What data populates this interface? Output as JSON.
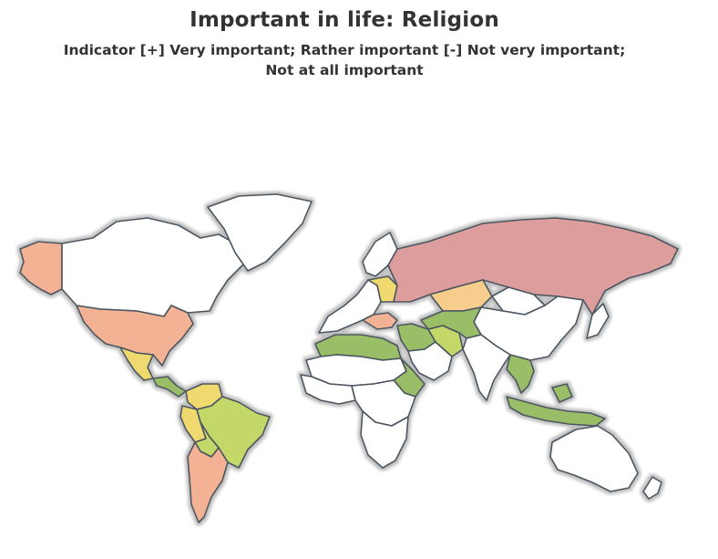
{
  "title": "Important in life: Religion",
  "subtitle_line1": "Indicator [+] Very important; Rather important [-] Not very important;",
  "subtitle_line2": "Not at all important",
  "colors": {
    "no_data": "#ffffff",
    "very_low": "#de9d9d",
    "low": "#f3b294",
    "mid_low": "#f6cd8c",
    "mid": "#f0d96e",
    "mid_high": "#c4d769",
    "high": "#9abd68",
    "outline": "#4a5560",
    "glow": "#bfbfbf"
  },
  "regions": [
    {
      "name": "alaska",
      "color": "low"
    },
    {
      "name": "canada",
      "color": "no_data"
    },
    {
      "name": "greenland",
      "color": "no_data"
    },
    {
      "name": "usa",
      "color": "low"
    },
    {
      "name": "mexico",
      "color": "mid"
    },
    {
      "name": "central-america",
      "color": "high"
    },
    {
      "name": "colombia-venezuela",
      "color": "mid"
    },
    {
      "name": "peru-ecuador",
      "color": "mid"
    },
    {
      "name": "brazil",
      "color": "mid_high"
    },
    {
      "name": "bolivia",
      "color": "mid_high"
    },
    {
      "name": "argentina-chile",
      "color": "low"
    },
    {
      "name": "europe-west",
      "color": "no_data"
    },
    {
      "name": "scandinavia",
      "color": "no_data"
    },
    {
      "name": "eastern-europe",
      "color": "mid"
    },
    {
      "name": "balkans",
      "color": "low"
    },
    {
      "name": "russia",
      "color": "very_low"
    },
    {
      "name": "kazakhstan",
      "color": "mid_low"
    },
    {
      "name": "mongolia",
      "color": "no_data"
    },
    {
      "name": "china",
      "color": "no_data"
    },
    {
      "name": "japan",
      "color": "no_data"
    },
    {
      "name": "north-africa",
      "color": "high"
    },
    {
      "name": "sahara",
      "color": "no_data"
    },
    {
      "name": "west-africa",
      "color": "no_data"
    },
    {
      "name": "east-africa",
      "color": "high"
    },
    {
      "name": "central-africa",
      "color": "no_data"
    },
    {
      "name": "southern-africa",
      "color": "no_data"
    },
    {
      "name": "middle-east",
      "color": "high"
    },
    {
      "name": "arabia",
      "color": "no_data"
    },
    {
      "name": "iran",
      "color": "mid_high"
    },
    {
      "name": "central-asia",
      "color": "high"
    },
    {
      "name": "india",
      "color": "no_data"
    },
    {
      "name": "southeast-asia",
      "color": "high"
    },
    {
      "name": "indonesia",
      "color": "high"
    },
    {
      "name": "australia",
      "color": "no_data"
    },
    {
      "name": "new-zealand",
      "color": "no_data"
    }
  ]
}
